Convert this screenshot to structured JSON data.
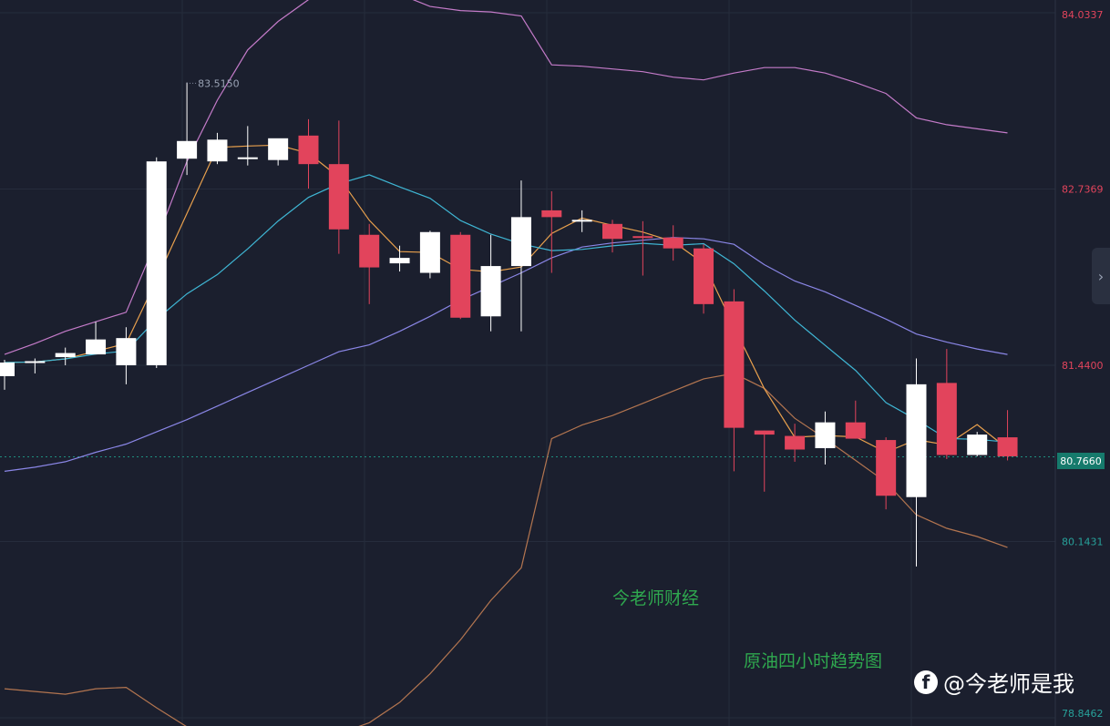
{
  "chart_data": {
    "type": "candlestick",
    "ylim": [
      78.8462,
      84.0337
    ],
    "grid": true,
    "price_levels": [
      84.0337,
      82.7369,
      81.44,
      80.1431,
      78.8462
    ],
    "current_price": 80.766,
    "high_marker": 83.515,
    "candles": [
      {
        "o": 81.36,
        "h": 81.48,
        "l": 81.26,
        "c": 81.46
      },
      {
        "o": 81.46,
        "h": 81.49,
        "l": 81.38,
        "c": 81.47
      },
      {
        "o": 81.5,
        "h": 81.57,
        "l": 81.44,
        "c": 81.53
      },
      {
        "o": 81.52,
        "h": 81.76,
        "l": 81.52,
        "c": 81.63
      },
      {
        "o": 81.44,
        "h": 81.72,
        "l": 81.3,
        "c": 81.64
      },
      {
        "o": 81.44,
        "h": 82.97,
        "l": 81.42,
        "c": 82.94
      },
      {
        "o": 82.96,
        "h": 83.52,
        "l": 82.84,
        "c": 83.09
      },
      {
        "o": 82.94,
        "h": 83.15,
        "l": 82.92,
        "c": 83.1
      },
      {
        "o": 82.96,
        "h": 83.2,
        "l": 82.91,
        "c": 82.97
      },
      {
        "o": 82.95,
        "h": 83.1,
        "l": 82.91,
        "c": 83.11
      },
      {
        "o": 83.13,
        "h": 83.25,
        "l": 82.74,
        "c": 82.92
      },
      {
        "o": 82.92,
        "h": 83.24,
        "l": 82.26,
        "c": 82.44
      },
      {
        "o": 82.4,
        "h": 82.48,
        "l": 81.89,
        "c": 82.16
      },
      {
        "o": 82.19,
        "h": 82.32,
        "l": 82.13,
        "c": 82.23
      },
      {
        "o": 82.12,
        "h": 82.43,
        "l": 82.08,
        "c": 82.42
      },
      {
        "o": 82.4,
        "h": 82.42,
        "l": 81.78,
        "c": 81.79
      },
      {
        "o": 81.8,
        "h": 82.4,
        "l": 81.69,
        "c": 82.17
      },
      {
        "o": 82.17,
        "h": 82.8,
        "l": 81.69,
        "c": 82.53
      },
      {
        "o": 82.58,
        "h": 82.72,
        "l": 82.12,
        "c": 82.53
      },
      {
        "o": 82.51,
        "h": 82.58,
        "l": 82.42,
        "c": 82.51
      },
      {
        "o": 82.48,
        "h": 82.51,
        "l": 82.27,
        "c": 82.37
      },
      {
        "o": 82.39,
        "h": 82.5,
        "l": 82.1,
        "c": 82.38
      },
      {
        "o": 82.38,
        "h": 82.47,
        "l": 82.21,
        "c": 82.3
      },
      {
        "o": 82.3,
        "h": 82.33,
        "l": 81.82,
        "c": 81.89
      },
      {
        "o": 81.91,
        "h": 82.0,
        "l": 80.66,
        "c": 80.98
      },
      {
        "o": 80.96,
        "h": 80.96,
        "l": 80.51,
        "c": 80.93
      },
      {
        "o": 80.92,
        "h": 81.01,
        "l": 80.73,
        "c": 80.82
      },
      {
        "o": 80.83,
        "h": 81.1,
        "l": 80.71,
        "c": 81.02
      },
      {
        "o": 81.02,
        "h": 81.18,
        "l": 80.9,
        "c": 80.9
      },
      {
        "o": 80.89,
        "h": 80.91,
        "l": 80.38,
        "c": 80.48
      },
      {
        "o": 80.47,
        "h": 81.49,
        "l": 79.96,
        "c": 81.3
      },
      {
        "o": 81.31,
        "h": 81.56,
        "l": 80.75,
        "c": 80.78
      },
      {
        "o": 80.78,
        "h": 80.95,
        "l": 80.77,
        "c": 80.93
      },
      {
        "o": 80.91,
        "h": 81.11,
        "l": 80.74,
        "c": 80.77
      }
    ],
    "upper_band": [
      81.52,
      81.6,
      81.69,
      81.76,
      81.83,
      82.36,
      82.94,
      83.39,
      83.76,
      83.97,
      84.13,
      84.21,
      84.22,
      84.17,
      84.08,
      84.05,
      84.04,
      84.01,
      83.65,
      83.64,
      83.62,
      83.6,
      83.56,
      83.54,
      83.59,
      83.63,
      83.63,
      83.59,
      83.52,
      83.44,
      83.26,
      83.21,
      83.18,
      83.15
    ],
    "middle_band": [
      80.66,
      80.69,
      80.73,
      80.8,
      80.86,
      80.95,
      81.04,
      81.14,
      81.24,
      81.34,
      81.44,
      81.54,
      81.59,
      81.69,
      81.8,
      81.92,
      82.02,
      82.12,
      82.23,
      82.31,
      82.34,
      82.36,
      82.38,
      82.37,
      82.33,
      82.18,
      82.06,
      81.98,
      81.88,
      81.78,
      81.67,
      81.61,
      81.56,
      81.52
    ],
    "lower_band": [
      79.06,
      79.04,
      79.02,
      79.06,
      79.07,
      78.92,
      78.78,
      78.73,
      78.7,
      78.66,
      78.67,
      78.73,
      78.81,
      78.96,
      79.17,
      79.42,
      79.71,
      79.95,
      80.9,
      81.0,
      81.07,
      81.16,
      81.25,
      81.34,
      81.38,
      81.27,
      81.05,
      80.9,
      80.74,
      80.58,
      80.34,
      80.24,
      80.18,
      80.1
    ]
  },
  "price_axis": {
    "labels": [
      "84.0337",
      "82.7369",
      "81.4400",
      "80.1431",
      "78.8462"
    ],
    "current": "80.7660",
    "high_marker": "83.5150"
  },
  "watermarks": {
    "site": "今老师财经",
    "caption": "原油四小时趋势图",
    "brand_handle": "@今老师是我",
    "brand_icon": "f"
  },
  "colors": {
    "background": "#1b1f2e",
    "bull": "#ffffff",
    "bear": "#e2445c",
    "upper_band": "#c47bc9",
    "middle_band": "#8a86e6",
    "lower_band": "#b37550",
    "ma_short": "#e8a04d",
    "ma_mid": "#3fb6d4",
    "current_price_tag": "#167a6c",
    "label_red": "#e2445c",
    "label_teal": "#27a19a",
    "watermark": "#2fa84f"
  }
}
